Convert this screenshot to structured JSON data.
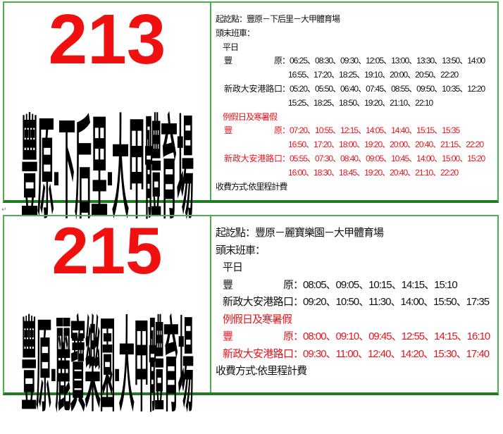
{
  "panels": [
    {
      "route_no": "213",
      "route_name": "豐原-下后里-大甲體育場",
      "origin_dest": "起訖點：豐原－下后里－大甲體育場",
      "first_last": "頭末班車：",
      "weekday": {
        "label": "平日",
        "rows": [
          {
            "stop": "豐原",
            "lines": [
              "：06:25、08:30、09:30、12:05、13:00、13:30、13:50、14:00",
              "16:55、17:20、18:25、19:10、20:00、20:50、22:20"
            ]
          },
          {
            "stop": "新政大安港路口",
            "lines": [
              "：05:20、05:50、06:40、07:45、08:55、09:50、10:35、12:20",
              "15:25、18:25、18:50、19:20、21:10、22:10"
            ]
          }
        ]
      },
      "holiday": {
        "label": "例假日及寒暑假",
        "rows": [
          {
            "stop": "豐原",
            "lines": [
              "：07:20、10:55、12:15、14:05、14:40、15:15、15:35",
              "16:50、17:20、18:00、19:20、20:00、20:40、21:15、22:20"
            ]
          },
          {
            "stop": "新政大安港路口",
            "lines": [
              "：05:55、07:30、08:40、09:05、10:45、14:00、15:00、15:20",
              "16:00、18:30、18:45、19:20、20:40、21:10、22:20"
            ]
          }
        ]
      },
      "fare": "收費方式:依里程計費"
    },
    {
      "route_no": "215",
      "route_name": "豐原-麗寶樂園-大甲體育場",
      "origin_dest": "起訖點：豐原－麗寶樂園－大甲體育場",
      "first_last": "頭末班車：",
      "weekday": {
        "label": "平日",
        "rows": [
          {
            "stop": "豐原",
            "lines": [
              "：08:05、09:05、10:15、14:15、15:10"
            ]
          },
          {
            "stop": "新政大安港路口",
            "lines": [
              "：09:20、10:50、11:30、14:00、15:50、17:35"
            ]
          }
        ]
      },
      "holiday": {
        "label": "例假日及寒暑假",
        "rows": [
          {
            "stop": "豐原",
            "lines": [
              "：08:00、09:10、09:45、12:55、14:15、16:10"
            ]
          },
          {
            "stop": "新政大安港路口",
            "lines": [
              "：09:30、11:00、12:40、14:20、15:30、17:40"
            ]
          }
        ]
      },
      "fare": "收費方式:依里程計費"
    }
  ],
  "paragraph_mark": "↵",
  "colors": {
    "route_no": "#f01010",
    "holiday": "#e8141c",
    "border": "#4caf50"
  }
}
